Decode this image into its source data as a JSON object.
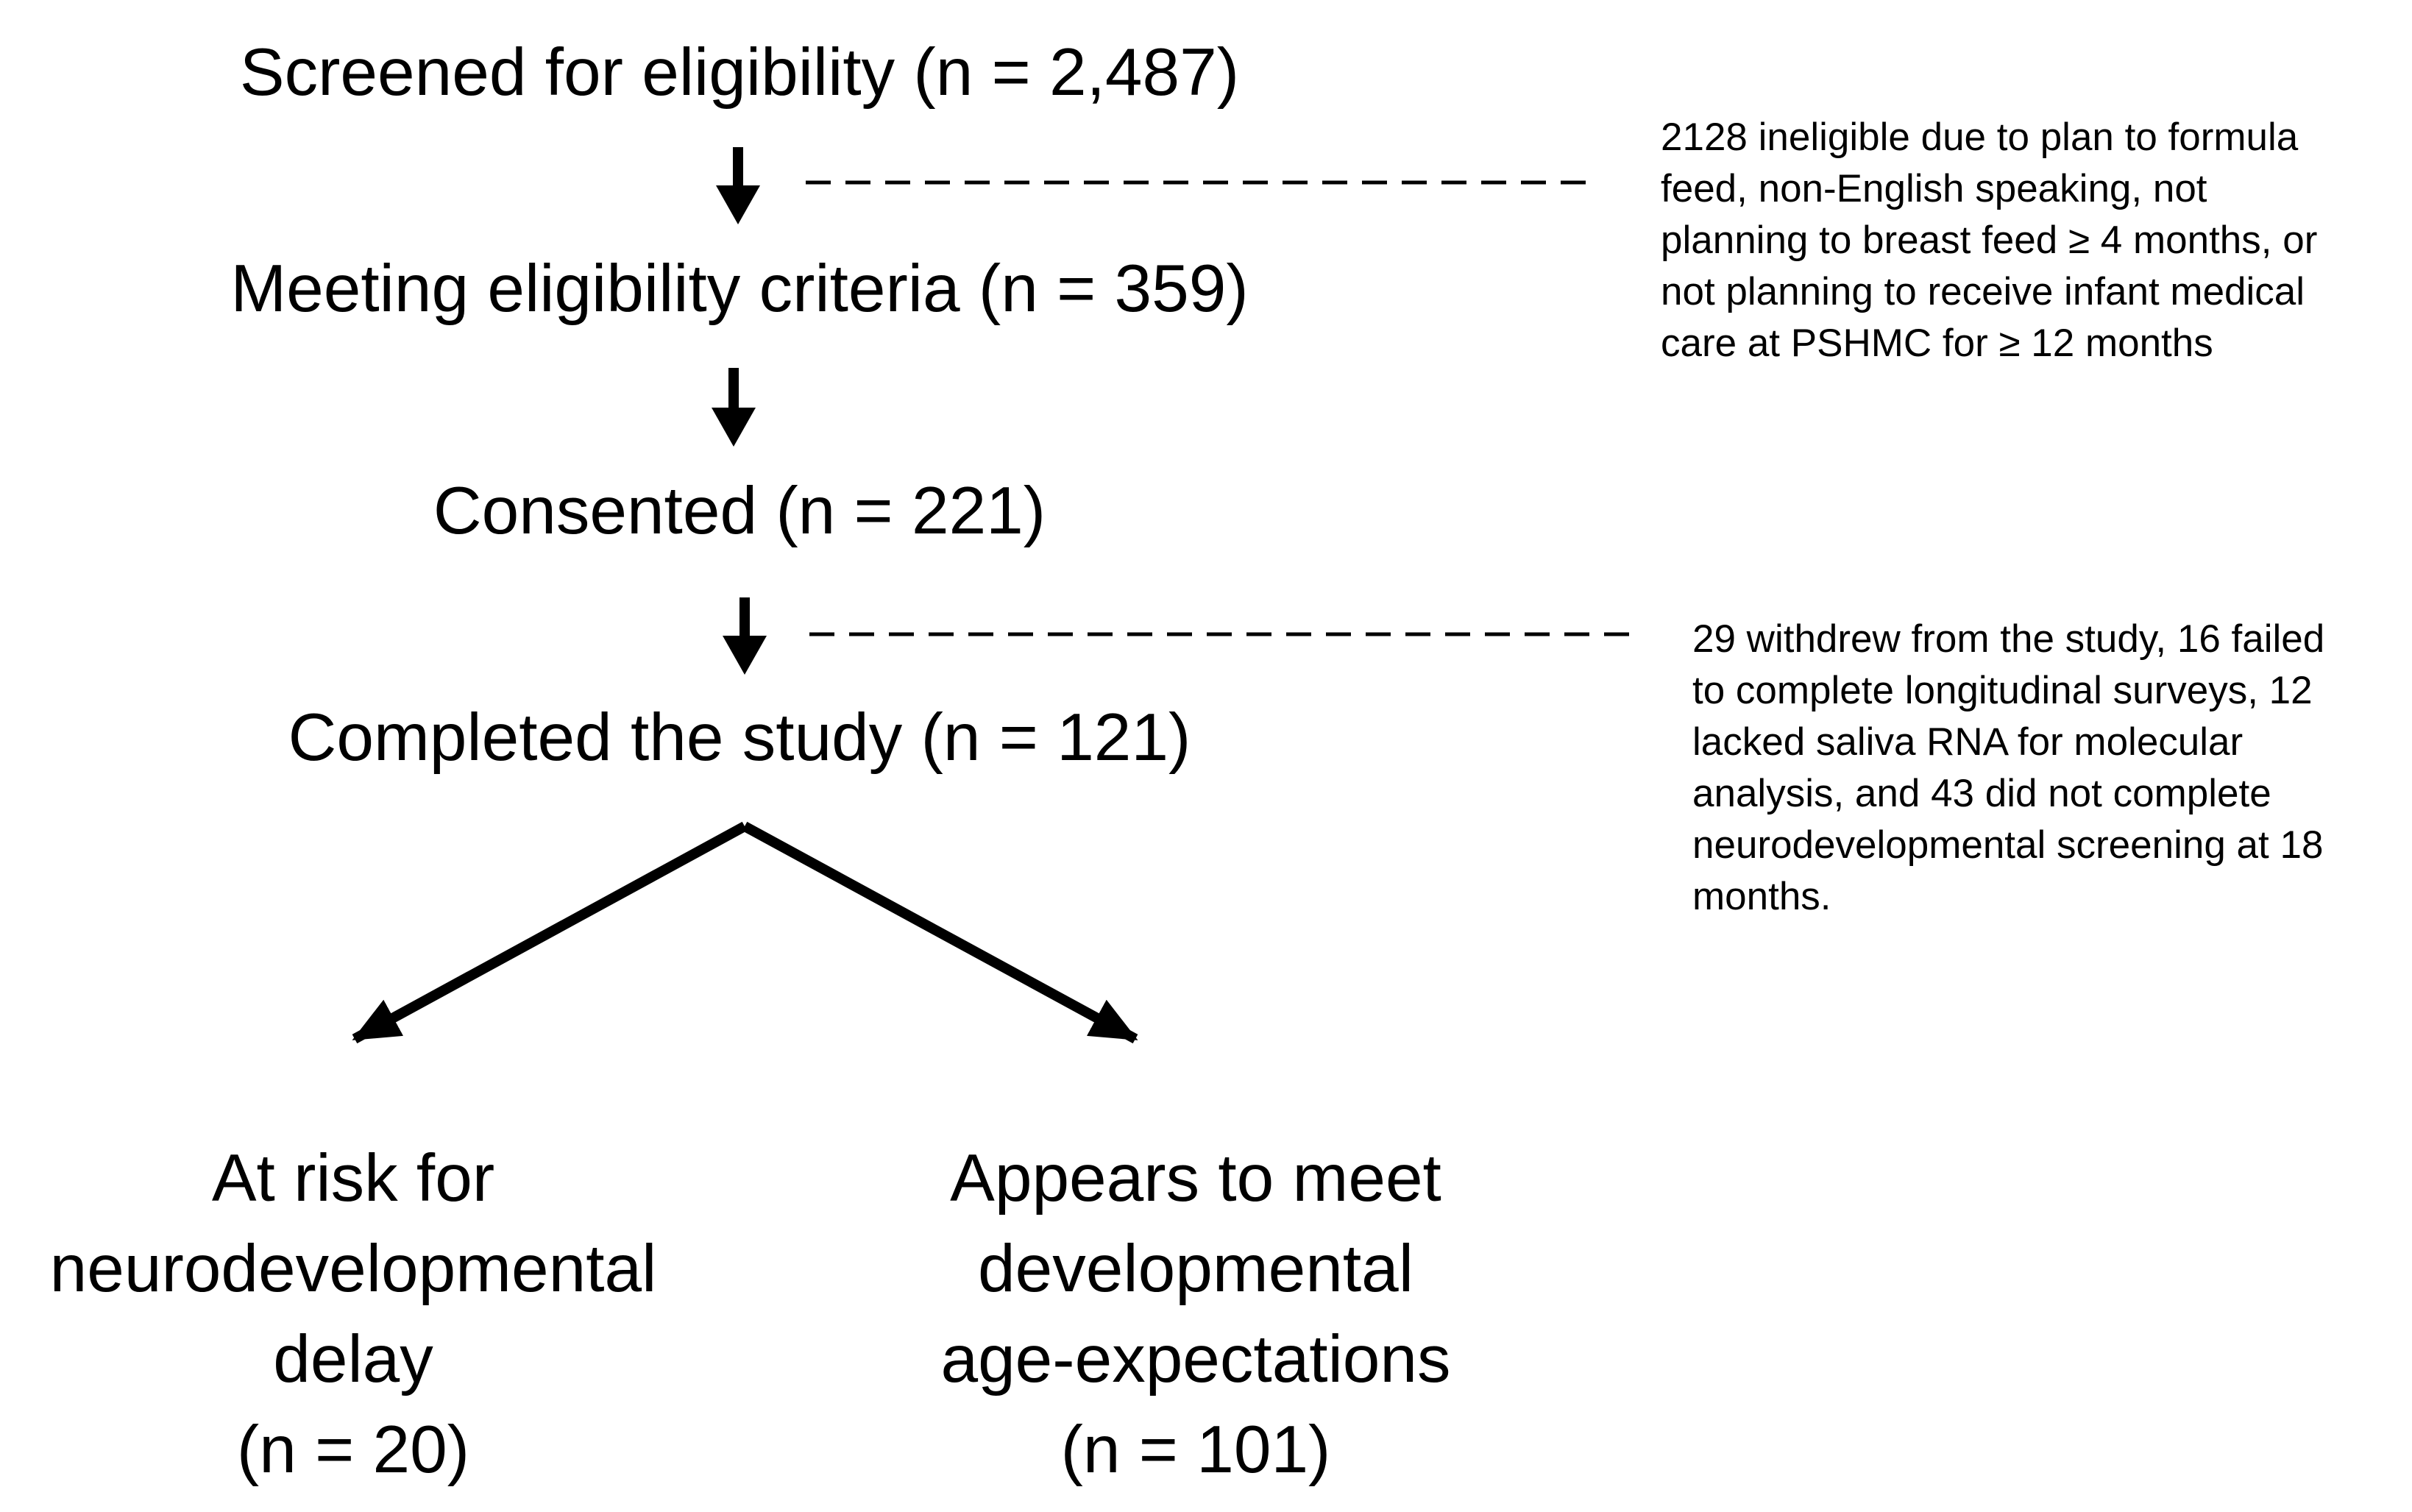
{
  "stages": {
    "screened": "Screened for eligibility (n = 2,487)",
    "meeting": "Meeting eligibility criteria (n = 359)",
    "consented": "Consented (n = 221)",
    "completed": "Completed the study (n = 121)"
  },
  "exclusions": {
    "ineligible": [
      "2128 ineligible due to plan to formula",
      "feed, non-English speaking, not",
      "planning to breast feed ≥ 4 months, or",
      "not planning to receive infant medical",
      "care at PSHMC for ≥ 12 months"
    ],
    "withdrawn": [
      "29 withdrew from the study, 16 failed",
      "to complete longitudinal surveys, 12",
      "lacked saliva RNA for molecular",
      "analysis, and 43 did not complete",
      "neurodevelopmental screening at 18",
      "months."
    ]
  },
  "outcomes": {
    "at_risk": [
      "At risk for",
      "neurodevelopmental",
      "delay",
      "(n = 20)"
    ],
    "meets": [
      "Appears to meet",
      "developmental",
      "age-expectations",
      "(n = 101)"
    ]
  },
  "colors": {
    "ink": "#000000",
    "background": "#ffffff"
  }
}
